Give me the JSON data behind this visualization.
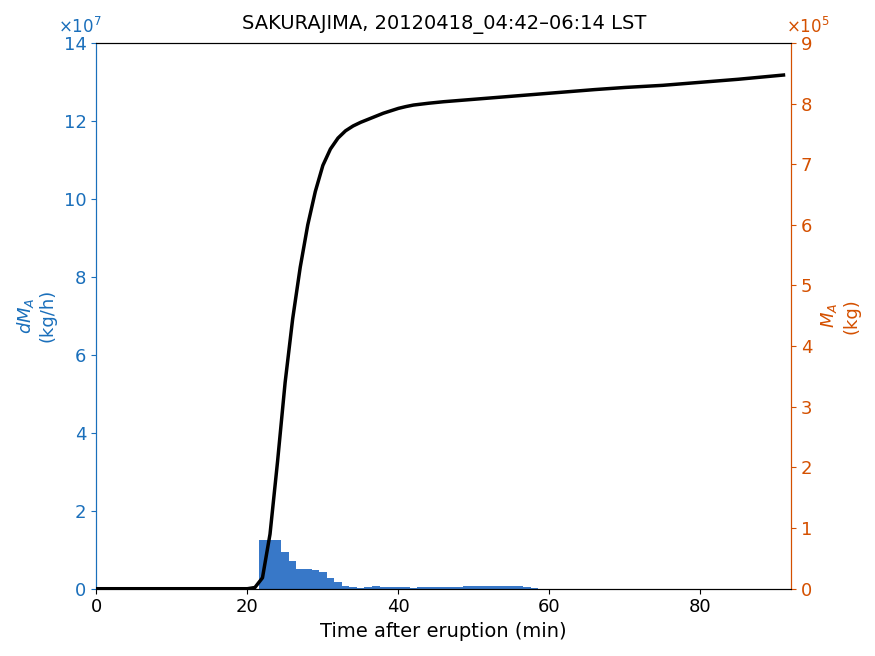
{
  "title": "SAKURAJIMA, 20120418_04:42–06:14 LST",
  "xlabel": "Time after eruption (min)",
  "bar_color": "#3878c8",
  "line_color": "#000000",
  "left_axis_color": "#1a6fbb",
  "right_axis_color": "#d45000",
  "xlim": [
    0,
    92
  ],
  "ylim_left": [
    0,
    140000000.0
  ],
  "ylim_right": [
    0,
    900000.0
  ],
  "bar_width": 1.0,
  "bar_centers": [
    22,
    23,
    24,
    25,
    26,
    27,
    28,
    29,
    30,
    31,
    32,
    33,
    34,
    35,
    36,
    37,
    38,
    39,
    40,
    41,
    42,
    43,
    44,
    45,
    46,
    47,
    48,
    49,
    50,
    51,
    52,
    53,
    54,
    55,
    56,
    57,
    58,
    59,
    60,
    61,
    62,
    63,
    64,
    65,
    66,
    67,
    68,
    69,
    70,
    71,
    72,
    73,
    74,
    75,
    76,
    77,
    78,
    79,
    80,
    81,
    82,
    83,
    84,
    85,
    86,
    87,
    88,
    89,
    90,
    91
  ],
  "bar_heights": [
    12400000.0,
    12500000.0,
    12450000.0,
    9300000.0,
    7100000.0,
    5100000.0,
    5000000.0,
    4850000.0,
    4350000.0,
    2850000.0,
    1600000.0,
    580000.0,
    550000.0,
    180000.0,
    550000.0,
    580000.0,
    450000.0,
    420000.0,
    400000.0,
    410000.0,
    100000.0,
    420000.0,
    380000.0,
    500000.0,
    480000.0,
    500000.0,
    350000.0,
    650000.0,
    700000.0,
    680000.0,
    580000.0,
    650000.0,
    650000.0,
    680000.0,
    700000.0,
    550000.0,
    250000.0,
    0.0,
    0.0,
    0.0,
    0.0,
    0.0,
    0.0,
    0.0,
    0.0,
    0.0,
    0.0,
    0.0,
    0.0,
    0.0,
    0.0,
    0.0,
    0.0,
    0.0,
    0.0,
    0.0,
    0.0,
    0.0,
    0.0,
    0.0,
    0.0,
    0.0,
    0.0,
    0.0,
    0.0,
    0.0,
    0.0,
    0.0,
    0.0,
    0.0
  ],
  "cum_x": [
    0,
    5,
    10,
    15,
    19,
    20,
    21,
    22,
    23,
    24,
    25,
    26,
    27,
    28,
    29,
    30,
    31,
    32,
    33,
    34,
    35,
    36,
    37,
    38,
    39,
    40,
    41,
    42,
    44,
    46,
    48,
    50,
    52,
    54,
    56,
    58,
    60,
    63,
    66,
    70,
    75,
    80,
    85,
    91
  ],
  "cum_y": [
    0,
    0,
    0,
    0,
    0,
    0,
    2000,
    18000,
    90000,
    210000,
    340000,
    445000,
    530000,
    600000,
    655000,
    698000,
    725000,
    743000,
    755000,
    763000,
    769000,
    774000,
    779000,
    784000,
    788000,
    792000,
    795000,
    797500,
    800500,
    803000,
    805000,
    807000,
    809000,
    811000,
    813000,
    815000,
    817000,
    820000,
    823000,
    826500,
    830000,
    835000,
    840000,
    847000
  ]
}
